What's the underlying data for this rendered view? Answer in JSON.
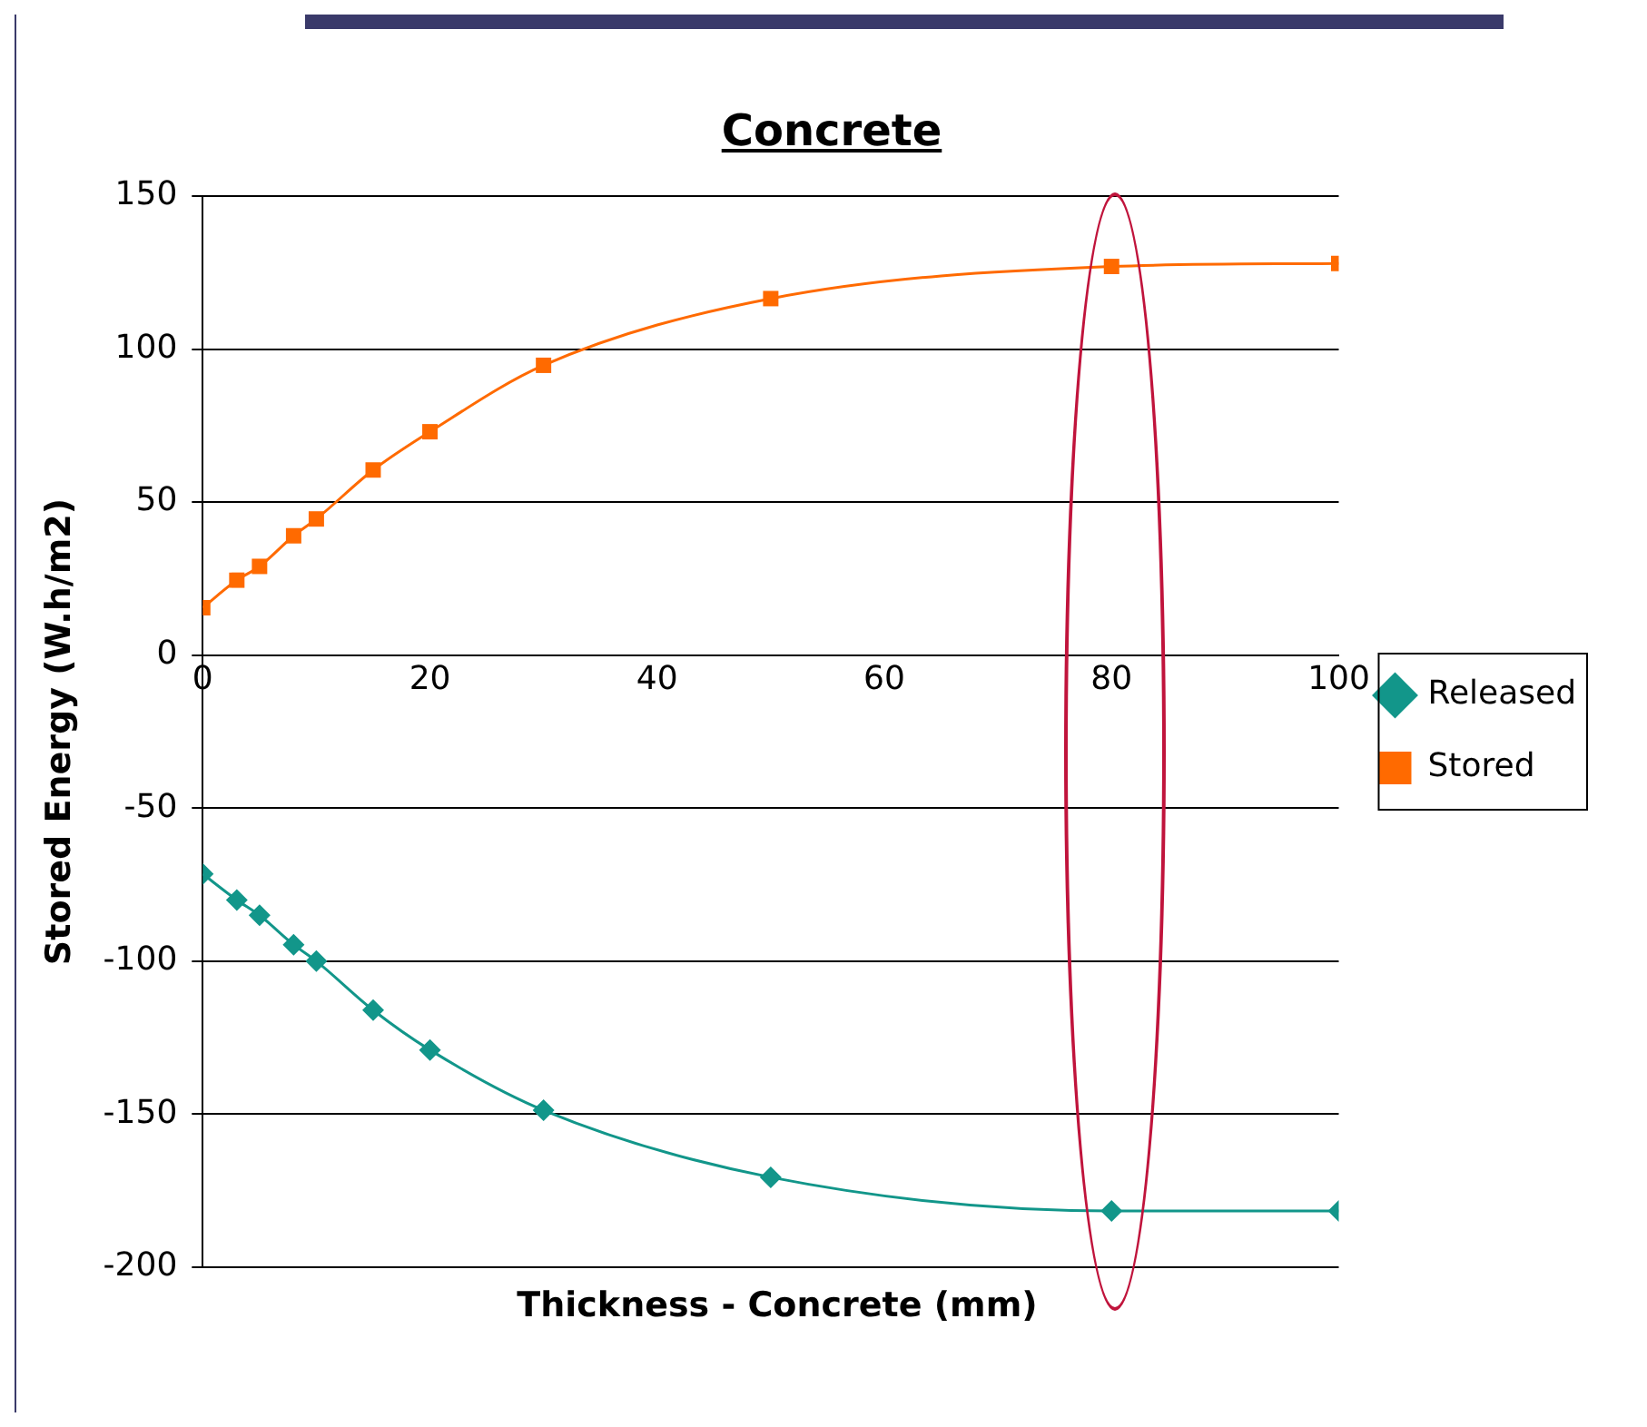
{
  "chart_data": {
    "type": "line",
    "title": "Concrete",
    "xlabel": "Thickness - Concrete (mm)",
    "ylabel": "Stored Energy (W.h/m2)",
    "series": [
      {
        "name": "Released",
        "color": "#12968a",
        "marker": "diamond",
        "x": [
          0,
          3,
          5,
          8,
          10,
          15,
          20,
          30,
          50,
          80,
          100
        ],
        "values": [
          -71.5,
          -80,
          -85,
          -94.6,
          -100,
          -116,
          -129,
          -148.7,
          -170.6,
          -181.6,
          -181.6
        ]
      },
      {
        "name": "Stored",
        "color": "#ff6a00",
        "marker": "square",
        "x": [
          0,
          3,
          5,
          8,
          10,
          15,
          20,
          30,
          50,
          80,
          100
        ],
        "values": [
          15.5,
          24.5,
          29,
          39,
          44.5,
          60.5,
          73,
          94.7,
          116.5,
          127,
          128
        ]
      }
    ],
    "xlim": [
      0,
      100
    ],
    "xticks": [
      0,
      20,
      40,
      60,
      80,
      100
    ],
    "ylim": [
      -200,
      150
    ],
    "yticks": [
      -200,
      -150,
      -100,
      -50,
      0,
      50,
      100,
      150
    ],
    "grid": "y",
    "legend": "right",
    "line_style": "solid"
  }
}
